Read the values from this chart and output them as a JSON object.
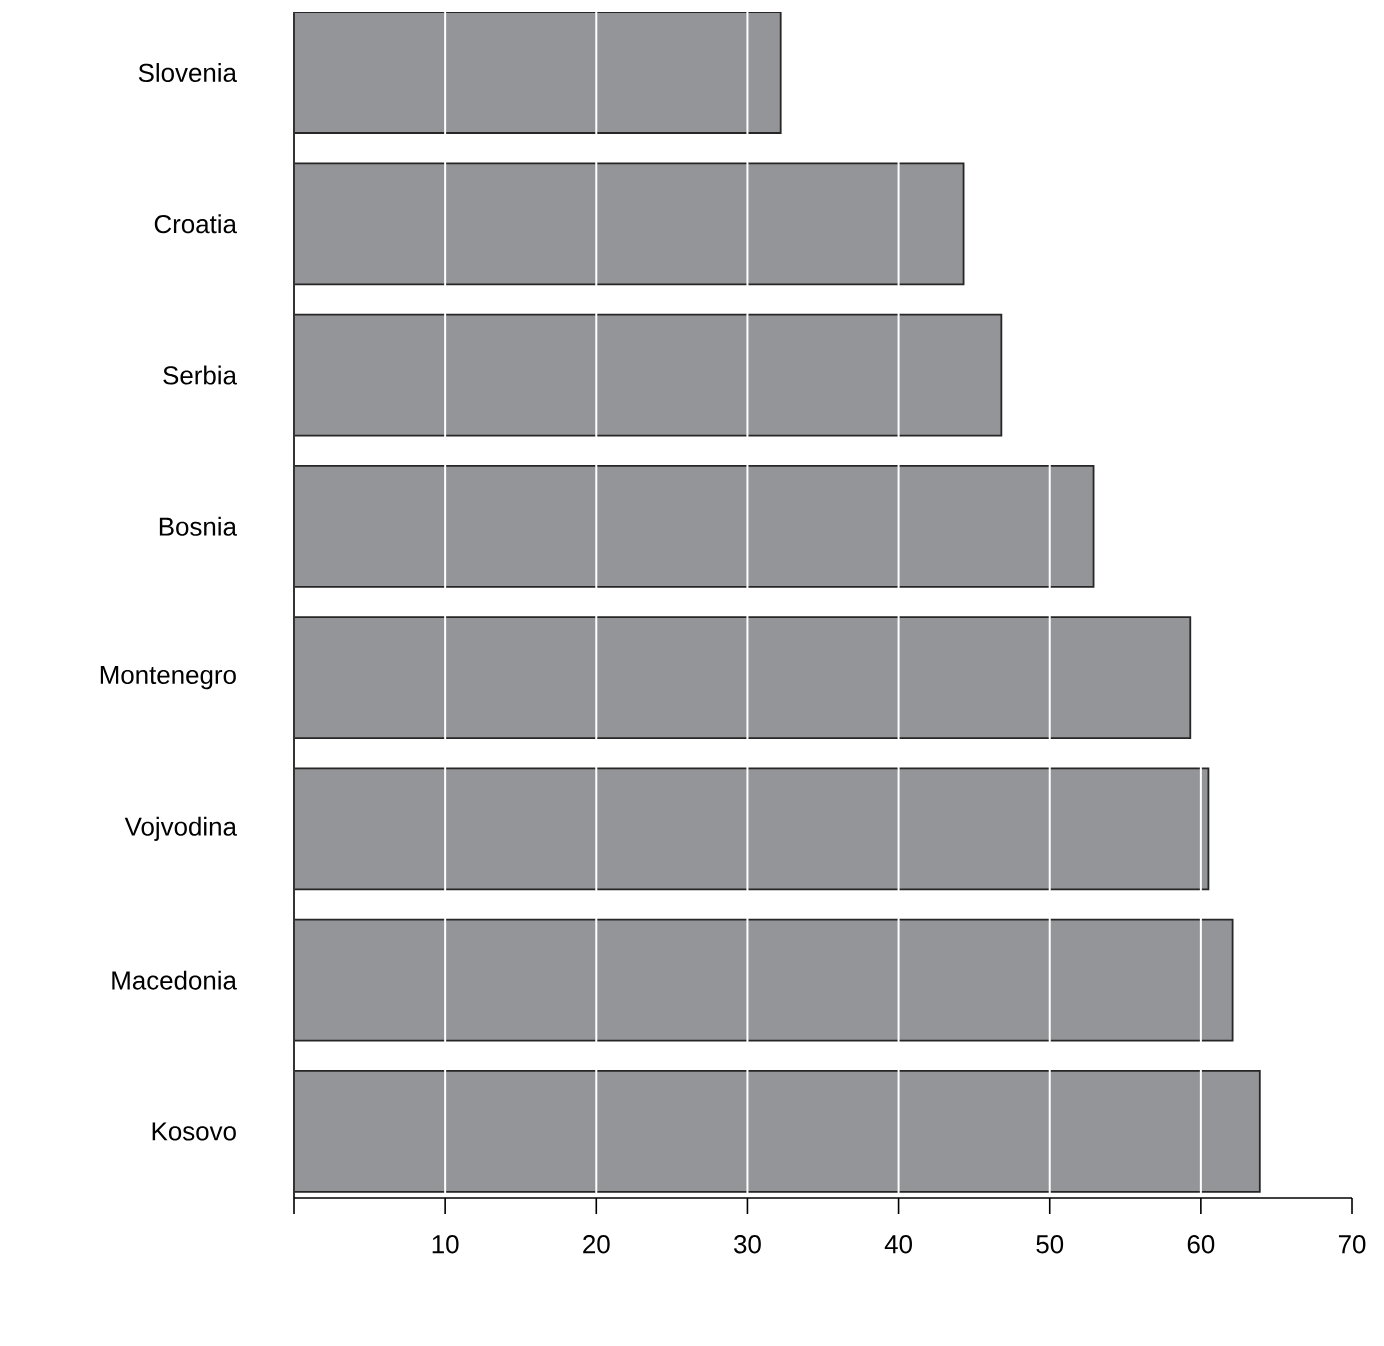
{
  "chart_data": {
    "type": "bar",
    "orientation": "horizontal",
    "categories": [
      "Slovenia",
      "Croatia",
      "Serbia",
      "Bosnia",
      "Montenegro",
      "Vojvodina",
      "Macedonia",
      "Kosovo"
    ],
    "values": [
      32.2,
      44.3,
      46.8,
      52.9,
      59.3,
      60.5,
      62.1,
      63.9
    ],
    "color": "#949598",
    "xlim": [
      0,
      70
    ],
    "xticks": [
      {
        "value": 0,
        "label": null
      },
      10,
      20,
      30,
      40,
      50,
      60,
      70
    ],
    "grid": "x"
  }
}
